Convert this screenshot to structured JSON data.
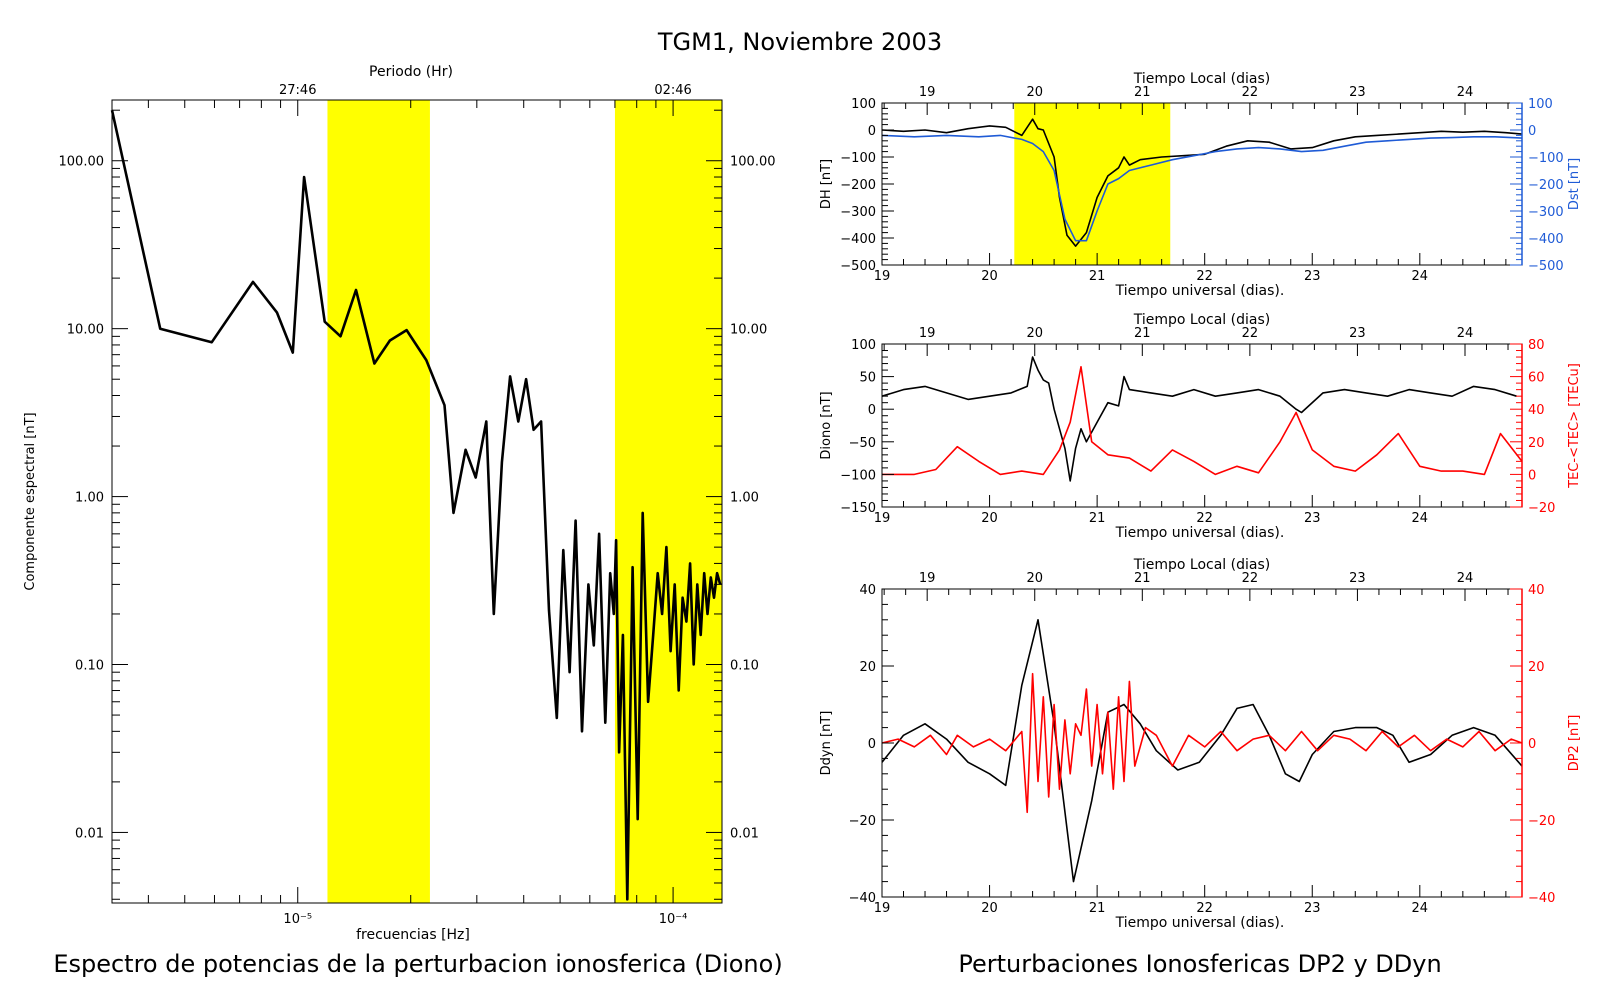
{
  "figure": {
    "title": "TGM1, Noviembre 2003",
    "left_caption": "Espectro de potencias de la perturbacion ionosferica (Diono)",
    "right_caption": "Perturbaciones Ionosfericas DP2 y DDyn"
  },
  "chart_data": [
    {
      "id": "spectrum",
      "type": "line",
      "xscale": "log",
      "yscale": "log",
      "xlabel": "frecuencias [Hz]",
      "ylabel": "Componente espectral [nT]",
      "x2label": "Periodo (Hr)",
      "xlim": [
        3.2e-06,
        0.000135
      ],
      "ylim": [
        0.0038,
        230
      ],
      "xticks": [
        {
          "v": 1e-05,
          "label": "10⁻⁵"
        },
        {
          "v": 0.0001,
          "label": "10⁻⁴"
        }
      ],
      "yticks": [
        {
          "v": 0.01,
          "label": "0.01"
        },
        {
          "v": 0.1,
          "label": "0.10"
        },
        {
          "v": 1,
          "label": "1.00"
        },
        {
          "v": 10,
          "label": "10.00"
        },
        {
          "v": 100,
          "label": "100.00"
        }
      ],
      "x2ticks": [
        {
          "v": 1e-05,
          "label": "27:46"
        },
        {
          "v": 0.0001,
          "label": "02:46"
        }
      ],
      "highlight_bands": [
        [
          1.2e-05,
          2.25e-05
        ],
        [
          7e-05,
          0.000135
        ]
      ],
      "highlight_color": "#ffff00",
      "series": [
        {
          "color": "#000000",
          "x": [
            3.2e-06,
            4.3e-06,
            5.9e-06,
            7.6e-06,
            8.8e-06,
            9.7e-06,
            1.04e-05,
            1.18e-05,
            1.3e-05,
            1.43e-05,
            1.6e-05,
            1.76e-05,
            1.95e-05,
            2.2e-05,
            2.46e-05,
            2.6e-05,
            2.8e-05,
            2.98e-05,
            3.18e-05,
            3.33e-05,
            3.5e-05,
            3.68e-05,
            3.87e-05,
            4.06e-05,
            4.25e-05,
            4.45e-05,
            4.67e-05,
            4.9e-05,
            5.1e-05,
            5.3e-05,
            5.5e-05,
            5.72e-05,
            5.95e-05,
            6.15e-05,
            6.35e-05,
            6.6e-05,
            6.8e-05,
            6.95e-05,
            7.05e-05,
            7.18e-05,
            7.35e-05,
            7.55e-05,
            7.8e-05,
            8.05e-05,
            8.3e-05,
            8.58e-05,
            8.85e-05,
            9.1e-05,
            9.35e-05,
            9.6e-05,
            9.85e-05,
            0.000101,
            0.0001035,
            0.000106,
            0.0001085,
            0.000111,
            0.0001135,
            0.000116,
            0.0001185,
            0.000121,
            0.0001235,
            0.000126,
            0.0001285,
            0.000131,
            0.0001335
          ],
          "y": [
            200,
            10.0,
            8.3,
            19.0,
            12.5,
            7.2,
            80,
            11.0,
            9.0,
            17.0,
            6.2,
            8.5,
            9.8,
            6.5,
            3.5,
            0.8,
            1.9,
            1.3,
            2.8,
            0.2,
            1.6,
            5.2,
            2.8,
            5.0,
            2.5,
            2.8,
            0.21,
            0.048,
            0.48,
            0.09,
            0.72,
            0.04,
            0.3,
            0.13,
            0.6,
            0.045,
            0.35,
            0.2,
            0.55,
            0.03,
            0.15,
            0.004,
            0.38,
            0.012,
            0.8,
            0.06,
            0.15,
            0.35,
            0.2,
            0.5,
            0.12,
            0.3,
            0.07,
            0.25,
            0.18,
            0.4,
            0.1,
            0.3,
            0.15,
            0.35,
            0.2,
            0.33,
            0.25,
            0.35,
            0.3
          ]
        }
      ]
    },
    {
      "id": "dh_dst",
      "type": "line",
      "xlabel": "Tiempo universal (dias).",
      "x2label": "Tiempo Local (dias)",
      "ylabel": "DH [nT]",
      "y2label": "Dst [nT]",
      "xlim": [
        19,
        24.95
      ],
      "ylim": [
        -500,
        100
      ],
      "y2lim": [
        -500,
        100
      ],
      "y2color": "#1f5bd6",
      "xticks": [
        19,
        20,
        21,
        22,
        23,
        24
      ],
      "x2ticks": [
        {
          "v": 19.42,
          "label": "19"
        },
        {
          "v": 20.42,
          "label": "20"
        },
        {
          "v": 21.42,
          "label": "21"
        },
        {
          "v": 22.42,
          "label": "22"
        },
        {
          "v": 23.42,
          "label": "23"
        },
        {
          "v": 24.42,
          "label": "24"
        }
      ],
      "yticks": [
        -500,
        -400,
        -300,
        -200,
        -100,
        0,
        100
      ],
      "y2ticks": [
        -500,
        -400,
        -300,
        -200,
        -100,
        0,
        100
      ],
      "highlight_bands": [
        [
          20.23,
          21.68
        ]
      ],
      "highlight_color": "#ffff00",
      "series": [
        {
          "name": "DH",
          "color": "#000000",
          "x": [
            19.0,
            19.2,
            19.4,
            19.6,
            19.8,
            20.0,
            20.15,
            20.3,
            20.4,
            20.45,
            20.5,
            20.6,
            20.65,
            20.72,
            20.8,
            20.9,
            21.0,
            21.1,
            21.2,
            21.25,
            21.3,
            21.4,
            21.6,
            21.8,
            22.0,
            22.2,
            22.4,
            22.6,
            22.8,
            23.0,
            23.2,
            23.4,
            23.6,
            23.8,
            24.0,
            24.2,
            24.4,
            24.6,
            24.8,
            24.95
          ],
          "y": [
            0,
            -5,
            0,
            -10,
            5,
            15,
            10,
            -20,
            40,
            5,
            0,
            -100,
            -250,
            -390,
            -430,
            -380,
            -250,
            -170,
            -140,
            -100,
            -130,
            -110,
            -100,
            -95,
            -90,
            -60,
            -40,
            -45,
            -70,
            -65,
            -40,
            -25,
            -20,
            -15,
            -10,
            -5,
            -8,
            -5,
            -10,
            -15
          ]
        },
        {
          "name": "Dst",
          "color": "#1f5bd6",
          "x": [
            19.0,
            19.3,
            19.6,
            19.9,
            20.1,
            20.3,
            20.4,
            20.5,
            20.6,
            20.7,
            20.8,
            20.9,
            21.0,
            21.1,
            21.2,
            21.3,
            21.5,
            21.7,
            21.9,
            22.1,
            22.3,
            22.5,
            22.7,
            22.9,
            23.1,
            23.3,
            23.5,
            23.7,
            23.9,
            24.1,
            24.3,
            24.5,
            24.7,
            24.95
          ],
          "y": [
            -20,
            -25,
            -20,
            -25,
            -20,
            -35,
            -50,
            -80,
            -150,
            -330,
            -410,
            -410,
            -300,
            -200,
            -180,
            -150,
            -130,
            -110,
            -95,
            -80,
            -70,
            -65,
            -70,
            -80,
            -75,
            -60,
            -45,
            -40,
            -35,
            -30,
            -28,
            -25,
            -25,
            -30
          ]
        }
      ]
    },
    {
      "id": "diono_tec",
      "type": "line",
      "xlabel": "Tiempo universal (dias).",
      "x2label": "Tiempo Local (dias)",
      "ylabel": "Diono [nT]",
      "y2label": "TEC-<TEC> [TECu]",
      "xlim": [
        19,
        24.95
      ],
      "ylim": [
        -150,
        100
      ],
      "y2lim": [
        -20,
        80
      ],
      "y2color": "#ff0000",
      "xticks": [
        19,
        20,
        21,
        22,
        23,
        24
      ],
      "x2ticks": [
        {
          "v": 19.42,
          "label": "19"
        },
        {
          "v": 20.42,
          "label": "20"
        },
        {
          "v": 21.42,
          "label": "21"
        },
        {
          "v": 22.42,
          "label": "22"
        },
        {
          "v": 23.42,
          "label": "23"
        },
        {
          "v": 24.42,
          "label": "24"
        }
      ],
      "yticks": [
        -150,
        -100,
        -50,
        0,
        50,
        100
      ],
      "y2ticks": [
        -20,
        0,
        20,
        40,
        60,
        80
      ],
      "series": [
        {
          "name": "Diono",
          "color": "#000000",
          "axis": "y",
          "x": [
            19.0,
            19.2,
            19.4,
            19.6,
            19.8,
            20.0,
            20.2,
            20.35,
            20.4,
            20.45,
            20.5,
            20.55,
            20.6,
            20.7,
            20.75,
            20.8,
            20.85,
            20.9,
            21.0,
            21.1,
            21.2,
            21.25,
            21.3,
            21.5,
            21.7,
            21.9,
            22.1,
            22.3,
            22.5,
            22.7,
            22.85,
            22.9,
            23.1,
            23.3,
            23.5,
            23.7,
            23.9,
            24.1,
            24.3,
            24.5,
            24.7,
            24.9
          ],
          "y": [
            20,
            30,
            35,
            25,
            15,
            20,
            25,
            35,
            80,
            60,
            45,
            40,
            0,
            -60,
            -110,
            -60,
            -30,
            -50,
            -20,
            10,
            5,
            50,
            30,
            25,
            20,
            30,
            20,
            25,
            30,
            20,
            0,
            -5,
            25,
            30,
            25,
            20,
            30,
            25,
            20,
            35,
            30,
            20
          ]
        },
        {
          "name": "TEC-<TEC>",
          "color": "#ff0000",
          "axis": "y2",
          "x": [
            19.0,
            19.3,
            19.5,
            19.7,
            19.9,
            20.1,
            20.3,
            20.5,
            20.65,
            20.75,
            20.85,
            20.95,
            21.1,
            21.3,
            21.5,
            21.7,
            21.9,
            22.1,
            22.3,
            22.5,
            22.7,
            22.85,
            23.0,
            23.2,
            23.4,
            23.6,
            23.8,
            24.0,
            24.2,
            24.4,
            24.6,
            24.75,
            24.95
          ],
          "y": [
            0,
            0,
            3,
            17,
            8,
            0,
            2,
            0,
            15,
            32,
            66,
            20,
            12,
            10,
            2,
            15,
            8,
            0,
            5,
            1,
            20,
            38,
            15,
            5,
            2,
            12,
            25,
            5,
            2,
            2,
            0,
            25,
            8
          ]
        }
      ]
    },
    {
      "id": "ddyn_dp2",
      "type": "line",
      "xlabel": "Tiempo universal (dias).",
      "x2label": "Tiempo Local (dias)",
      "ylabel": "Ddyn [nT]",
      "y2label": "DP2 [nT]",
      "xlim": [
        19,
        24.95
      ],
      "ylim": [
        -40,
        40
      ],
      "y2lim": [
        -40,
        40
      ],
      "y2color": "#ff0000",
      "xticks": [
        19,
        20,
        21,
        22,
        23,
        24
      ],
      "x2ticks": [
        {
          "v": 19.42,
          "label": "19"
        },
        {
          "v": 20.42,
          "label": "20"
        },
        {
          "v": 21.42,
          "label": "21"
        },
        {
          "v": 22.42,
          "label": "22"
        },
        {
          "v": 23.42,
          "label": "23"
        },
        {
          "v": 24.42,
          "label": "24"
        }
      ],
      "yticks": [
        -40,
        -20,
        0,
        20,
        40
      ],
      "y2ticks": [
        -40,
        -20,
        0,
        20,
        40
      ],
      "series": [
        {
          "name": "Ddyn",
          "color": "#000000",
          "axis": "y",
          "x": [
            19.0,
            19.2,
            19.4,
            19.6,
            19.8,
            20.0,
            20.15,
            20.3,
            20.45,
            20.6,
            20.78,
            20.95,
            21.1,
            21.25,
            21.4,
            21.55,
            21.75,
            21.95,
            22.15,
            22.3,
            22.45,
            22.6,
            22.75,
            22.88,
            23.0,
            23.2,
            23.4,
            23.6,
            23.75,
            23.9,
            24.1,
            24.3,
            24.5,
            24.7,
            24.95
          ],
          "y": [
            -5,
            2,
            5,
            1,
            -5,
            -8,
            -11,
            15,
            32,
            5,
            -36,
            -15,
            8,
            10,
            5,
            -2,
            -7,
            -5,
            2,
            9,
            10,
            2,
            -8,
            -10,
            -3,
            3,
            4,
            4,
            2,
            -5,
            -3,
            2,
            4,
            2,
            -6
          ]
        },
        {
          "name": "DP2",
          "color": "#ff0000",
          "axis": "y2",
          "x": [
            19.0,
            19.15,
            19.3,
            19.45,
            19.6,
            19.7,
            19.85,
            20.0,
            20.15,
            20.3,
            20.35,
            20.4,
            20.45,
            20.5,
            20.55,
            20.6,
            20.65,
            20.7,
            20.75,
            20.8,
            20.85,
            20.9,
            20.95,
            21.0,
            21.05,
            21.1,
            21.15,
            21.2,
            21.25,
            21.3,
            21.35,
            21.45,
            21.55,
            21.7,
            21.85,
            22.0,
            22.15,
            22.3,
            22.45,
            22.6,
            22.75,
            22.9,
            23.05,
            23.2,
            23.35,
            23.5,
            23.65,
            23.8,
            23.95,
            24.1,
            24.25,
            24.4,
            24.55,
            24.7,
            24.85,
            24.95
          ],
          "y": [
            0,
            1,
            -1,
            2,
            -3,
            2,
            -1,
            1,
            -2,
            3,
            -18,
            18,
            -10,
            12,
            -14,
            10,
            -12,
            6,
            -8,
            5,
            2,
            14,
            -6,
            10,
            -8,
            8,
            -12,
            12,
            -10,
            16,
            -6,
            4,
            2,
            -6,
            2,
            -1,
            3,
            -2,
            1,
            2,
            -2,
            3,
            -2,
            2,
            1,
            -2,
            3,
            -1,
            2,
            -2,
            1,
            -1,
            3,
            -2,
            1,
            0
          ]
        }
      ]
    }
  ]
}
